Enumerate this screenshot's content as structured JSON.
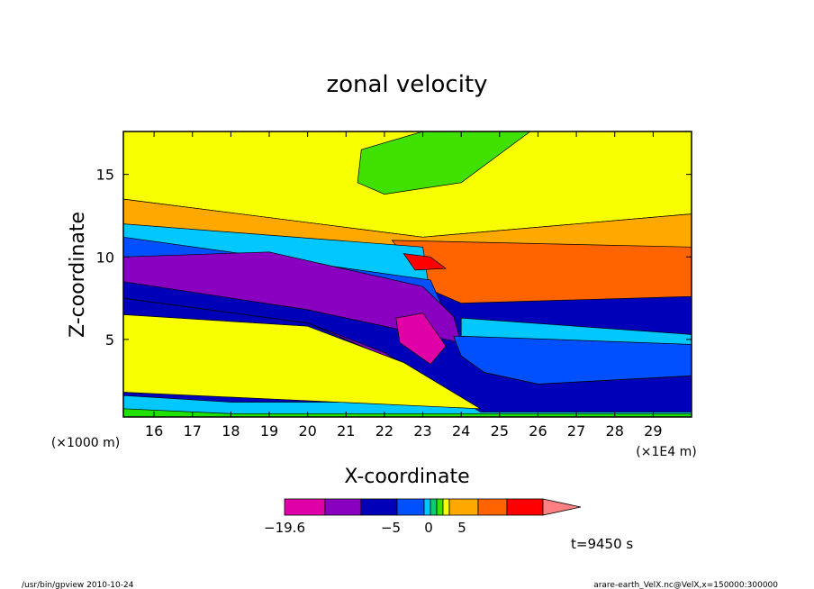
{
  "chart_data": {
    "type": "heatmap",
    "title": "zonal velocity",
    "xlabel": "X-coordinate",
    "ylabel": "Z-coordinate",
    "x_ticks": [
      "16",
      "17",
      "18",
      "19",
      "20",
      "21",
      "22",
      "23",
      "24",
      "25",
      "26",
      "27",
      "28",
      "29"
    ],
    "y_ticks": [
      "5",
      "10",
      "15"
    ],
    "x_unit": "(×1E4 m)",
    "y_unit": "(×1000 m)",
    "xlim": [
      15.2,
      30.0
    ],
    "ylim": [
      0.3,
      17.6
    ],
    "colorbar": {
      "labels": [
        {
          "text": "−19.6",
          "value": -19.6
        },
        {
          "text": "−5",
          "value": -5
        },
        {
          "text": "0",
          "value": 0
        },
        {
          "text": "5",
          "value": 5
        }
      ],
      "colors": [
        "#e000a8",
        "#8a00c0",
        "#0000b8",
        "#0050ff",
        "#00c8ff",
        "#00d070",
        "#40e000",
        "#f8ff00",
        "#ffa800",
        "#ff6400",
        "#ff0000",
        "#ff8080"
      ]
    },
    "bands": [
      {
        "name": "ground",
        "color": "#20e000",
        "points": [
          [
            15.2,
            0.3
          ],
          [
            30,
            0.3
          ],
          [
            30,
            0.8
          ],
          [
            15.2,
            0.8
          ]
        ]
      },
      {
        "name": "surface-cyan",
        "color": "#00c8ff",
        "points": [
          [
            15.2,
            0.8
          ],
          [
            18,
            0.5
          ],
          [
            30,
            0.5
          ],
          [
            30,
            1.2
          ],
          [
            18,
            1.2
          ],
          [
            15.2,
            1.6
          ]
        ]
      },
      {
        "name": "upper-yellow",
        "color": "#f8ff00",
        "points": [
          [
            15.2,
            17.6
          ],
          [
            30,
            17.6
          ],
          [
            30,
            12.6
          ],
          [
            23,
            11.2
          ],
          [
            15.2,
            13.5
          ]
        ]
      },
      {
        "name": "upper-orange",
        "color": "#ffa800",
        "points": [
          [
            15.2,
            13.5
          ],
          [
            23,
            11.2
          ],
          [
            30,
            12.6
          ],
          [
            30,
            9.5
          ],
          [
            23,
            9.0
          ],
          [
            15.2,
            12.0
          ]
        ]
      },
      {
        "name": "upper-deep-orange",
        "color": "#ff6400",
        "points": [
          [
            22.2,
            11.0
          ],
          [
            30,
            10.6
          ],
          [
            30,
            7.6
          ],
          [
            24,
            7.2
          ],
          [
            23.2,
            8.0
          ]
        ]
      },
      {
        "name": "upper-cyan-green",
        "color": "#00c8ff",
        "points": [
          [
            15.2,
            12.0
          ],
          [
            23,
            10.6
          ],
          [
            23.2,
            7.5
          ],
          [
            15.2,
            11.2
          ]
        ]
      },
      {
        "name": "upper-blue",
        "color": "#0050ff",
        "points": [
          [
            15.2,
            11.2
          ],
          [
            23.2,
            8.6
          ],
          [
            23.6,
            6.5
          ],
          [
            15.2,
            10.0
          ]
        ]
      },
      {
        "name": "purple-core",
        "color": "#8a00c0",
        "points": [
          [
            15.2,
            10.0
          ],
          [
            19,
            10.3
          ],
          [
            23,
            8.2
          ],
          [
            23.8,
            6.4
          ],
          [
            24.3,
            2.3
          ],
          [
            22.5,
            3.5
          ],
          [
            20,
            6.0
          ],
          [
            15.2,
            7.5
          ]
        ]
      },
      {
        "name": "navy-lower",
        "color": "#0000b8",
        "points": [
          [
            15.2,
            7.5
          ],
          [
            20,
            6.0
          ],
          [
            22,
            4.2
          ],
          [
            24.5,
            0.6
          ],
          [
            30,
            0.6
          ],
          [
            30,
            2.8
          ],
          [
            26,
            2.3
          ],
          [
            24.6,
            3.0
          ],
          [
            24,
            4.8
          ],
          [
            20,
            6.8
          ],
          [
            15.2,
            8.5
          ]
        ]
      },
      {
        "name": "mid-blue",
        "color": "#0050ff",
        "points": [
          [
            23.8,
            5.2
          ],
          [
            30,
            4.8
          ],
          [
            30,
            2.8
          ],
          [
            26,
            2.3
          ],
          [
            24.6,
            3.0
          ],
          [
            24,
            4.0
          ]
        ]
      },
      {
        "name": "mid-cyan",
        "color": "#00c8ff",
        "points": [
          [
            24,
            6.3
          ],
          [
            30,
            5.3
          ],
          [
            30,
            4.7
          ],
          [
            24,
            5.2
          ]
        ]
      },
      {
        "name": "lower-orange",
        "color": "#ffa800",
        "points": [
          [
            15.2,
            5.8
          ],
          [
            20,
            5.3
          ],
          [
            22,
            3.4
          ],
          [
            24,
            1.2
          ],
          [
            15.2,
            1.8
          ]
        ]
      },
      {
        "name": "lower-deep-orange",
        "color": "#ff6400",
        "points": [
          [
            20,
            3.3
          ],
          [
            22,
            3.2
          ],
          [
            23.8,
            1.3
          ],
          [
            20,
            2.3
          ]
        ]
      },
      {
        "name": "lower-yellow",
        "color": "#f8ff00",
        "points": [
          [
            15.2,
            6.5
          ],
          [
            20,
            5.8
          ],
          [
            22.5,
            3.6
          ],
          [
            24.5,
            0.8
          ],
          [
            15.2,
            1.8
          ]
        ]
      },
      {
        "name": "strongest-magenta",
        "color": "#e000a8",
        "points": [
          [
            22.3,
            6.3
          ],
          [
            23,
            6.6
          ],
          [
            23.6,
            4.6
          ],
          [
            23.2,
            3.5
          ],
          [
            22.4,
            4.8
          ]
        ]
      },
      {
        "name": "upper-red",
        "color": "#ff0000",
        "points": [
          [
            22.5,
            10.2
          ],
          [
            23.2,
            10.0
          ],
          [
            23.6,
            9.3
          ],
          [
            22.8,
            9.2
          ]
        ]
      },
      {
        "name": "green-patch-top",
        "color": "#40e000",
        "points": [
          [
            22,
            13.8
          ],
          [
            24,
            14.5
          ],
          [
            25.8,
            17.6
          ],
          [
            23,
            17.6
          ],
          [
            21.4,
            16.5
          ],
          [
            21.3,
            14.5
          ]
        ]
      }
    ],
    "time_label": "t=9450 s",
    "footer_left": "/usr/bin/gpview  2010-10-24",
    "footer_right": "arare-earth_VelX.nc@VelX,x=150000:300000"
  }
}
